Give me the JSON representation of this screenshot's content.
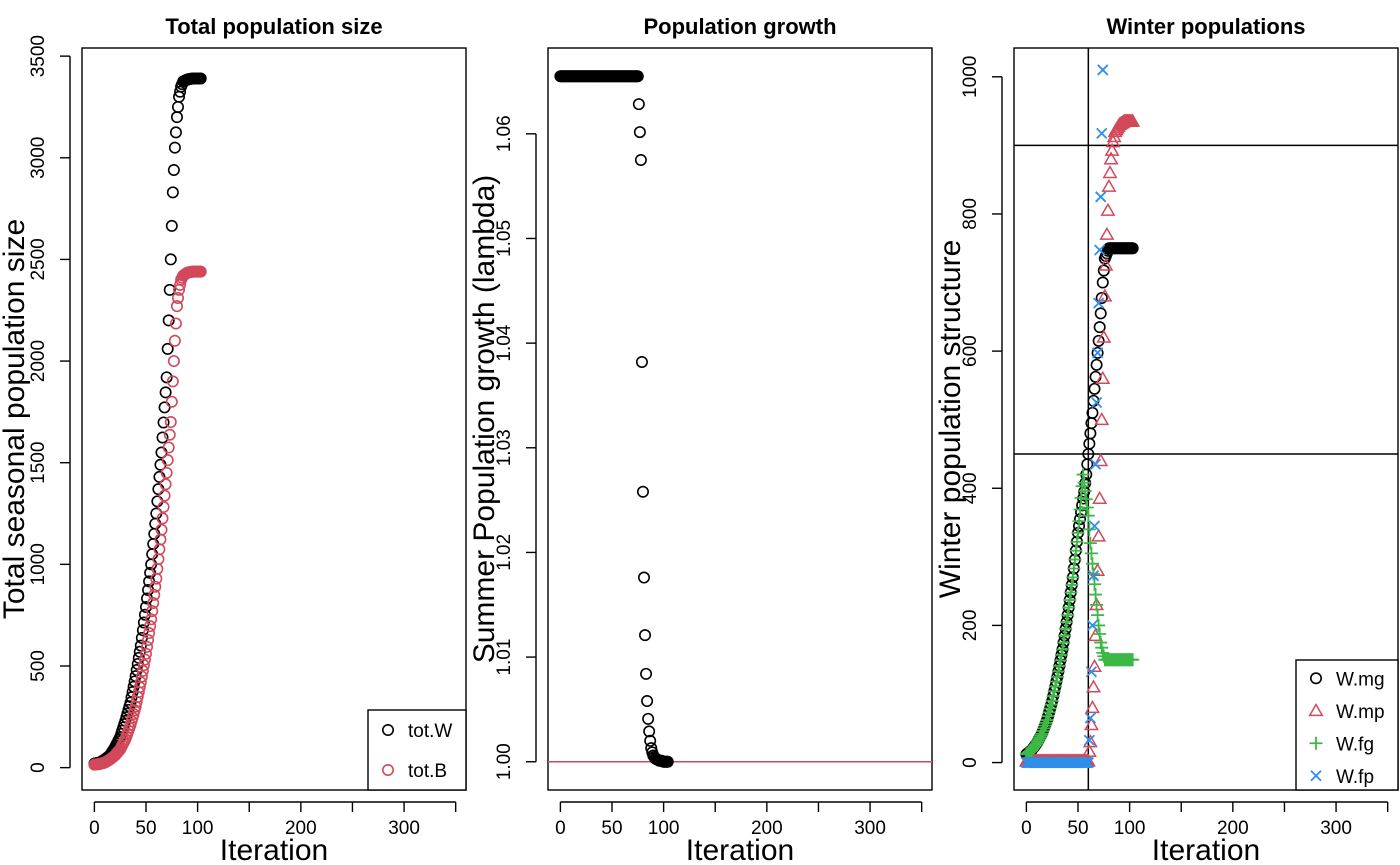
{
  "chart_data": [
    {
      "type": "scatter",
      "title": "Total population size",
      "xlabel": "Iteration",
      "ylabel": "Total seasonal population size",
      "xlim": [
        -12,
        360
      ],
      "ylim": [
        -110,
        3540
      ],
      "x_ticks": [
        0,
        50,
        100,
        150,
        200,
        250,
        300,
        350
      ],
      "x_tick_labels": [
        "0",
        "50",
        "100",
        "",
        "200",
        "",
        "300",
        ""
      ],
      "y_ticks": [
        0,
        500,
        1000,
        1500,
        2000,
        2500,
        3000,
        3500
      ],
      "y_tick_labels": [
        "0",
        "500",
        "1000",
        "1500",
        "2000",
        "2500",
        "3000",
        "3500"
      ],
      "legend": {
        "position": "bottom-right",
        "entries": [
          "tot.W",
          "tot.B"
        ]
      },
      "series": [
        {
          "name": "tot.W",
          "color": "#000000",
          "marker": "circle",
          "description": "exponential growth to plateau",
          "x": [
            0,
            5,
            10,
            15,
            20,
            25,
            30,
            35,
            40,
            45,
            50,
            55,
            60,
            65,
            70,
            72,
            74,
            76,
            78,
            80,
            82,
            84,
            86,
            90,
            95,
            100,
            103
          ],
          "y": [
            20,
            25,
            40,
            60,
            100,
            150,
            230,
            320,
            450,
            600,
            790,
            1000,
            1250,
            1550,
            1920,
            2200,
            2500,
            2830,
            3050,
            3200,
            3300,
            3350,
            3375,
            3385,
            3390,
            3390,
            3390
          ]
        },
        {
          "name": "tot.B",
          "color": "#d1495b",
          "marker": "circle",
          "description": "lagged growth to lower plateau",
          "x": [
            0,
            5,
            10,
            15,
            20,
            25,
            30,
            35,
            40,
            45,
            50,
            55,
            60,
            65,
            70,
            74,
            76,
            78,
            80,
            82,
            84,
            86,
            90,
            95,
            100,
            103
          ],
          "y": [
            15,
            18,
            25,
            40,
            60,
            90,
            140,
            210,
            300,
            420,
            560,
            730,
            930,
            1170,
            1450,
            1700,
            1900,
            2100,
            2270,
            2350,
            2400,
            2420,
            2435,
            2440,
            2440,
            2440
          ]
        }
      ]
    },
    {
      "type": "scatter",
      "title": "Population growth",
      "xlabel": "Iteration",
      "ylabel": "Summer Population growth (lambda)",
      "xlim": [
        -12,
        360
      ],
      "ylim": [
        0.9973,
        1.0682
      ],
      "x_ticks": [
        0,
        50,
        100,
        150,
        200,
        250,
        300,
        350
      ],
      "x_tick_labels": [
        "0",
        "50",
        "100",
        "",
        "200",
        "",
        "300",
        ""
      ],
      "y_ticks": [
        1.0,
        1.01,
        1.02,
        1.03,
        1.04,
        1.05,
        1.06
      ],
      "y_tick_labels": [
        "1.00",
        "1.01",
        "1.02",
        "1.03",
        "1.04",
        "1.05",
        "1.06"
      ],
      "hlines": [
        {
          "y": 1.0,
          "color": "#d1495b"
        }
      ],
      "series": [
        {
          "name": "lambda",
          "color": "#000000",
          "marker": "circle",
          "x": [
            0,
            5,
            10,
            15,
            20,
            25,
            30,
            35,
            40,
            45,
            50,
            55,
            60,
            65,
            70,
            75,
            78,
            79,
            80,
            81,
            82,
            83,
            84,
            85,
            86,
            87,
            88,
            89,
            90,
            92,
            94,
            96,
            98,
            100,
            102,
            104
          ],
          "y": [
            1.0655,
            1.0655,
            1.0655,
            1.0655,
            1.0655,
            1.0655,
            1.0655,
            1.0655,
            1.0655,
            1.0655,
            1.0655,
            1.0655,
            1.0655,
            1.0655,
            1.0655,
            1.0655,
            1.0575,
            1.0382,
            1.0258,
            1.0176,
            1.0121,
            1.0084,
            1.0058,
            1.0041,
            1.0029,
            1.002,
            1.0013,
            1.0009,
            1.0006,
            1.0003,
            1.0002,
            1.0001,
            1.0001,
            1.0,
            1.0,
            1.0
          ]
        }
      ]
    },
    {
      "type": "scatter",
      "title": "Winter populations",
      "xlabel": "Iteration",
      "ylabel": "Winter population structure",
      "xlim": [
        -12,
        360
      ],
      "ylim": [
        -40,
        1042
      ],
      "x_ticks": [
        0,
        50,
        100,
        150,
        200,
        250,
        300,
        350
      ],
      "x_tick_labels": [
        "0",
        "50",
        "100",
        "",
        "200",
        "",
        "300",
        ""
      ],
      "y_ticks": [
        0,
        200,
        400,
        600,
        800,
        1000
      ],
      "y_tick_labels": [
        "0",
        "200",
        "400",
        "600",
        "800",
        "1000"
      ],
      "hlines": [
        {
          "y": 900,
          "color": "#000000"
        },
        {
          "y": 450,
          "color": "#000000"
        }
      ],
      "vlines": [
        {
          "x": 60,
          "color": "#000000"
        }
      ],
      "legend": {
        "position": "bottom-right",
        "entries": [
          "W.mg",
          "W.mp",
          "W.fg",
          "W.fp"
        ]
      },
      "series": [
        {
          "name": "W.mg",
          "color": "#000000",
          "marker": "circle",
          "x": [
            0,
            5,
            10,
            15,
            20,
            25,
            30,
            35,
            40,
            45,
            50,
            52,
            54,
            56,
            58,
            60,
            62,
            64,
            66,
            68,
            70,
            72,
            74,
            76,
            80,
            85,
            90,
            95,
            100,
            103
          ],
          "y": [
            12,
            18,
            28,
            42,
            62,
            90,
            125,
            165,
            215,
            270,
            335,
            355,
            375,
            395,
            420,
            450,
            480,
            510,
            545,
            580,
            615,
            655,
            700,
            735,
            750,
            750,
            750,
            750,
            750,
            750
          ]
        },
        {
          "name": "W.mp",
          "color": "#d1495b",
          "marker": "triangle",
          "x": [
            0,
            10,
            20,
            30,
            40,
            50,
            55,
            60,
            62,
            64,
            66,
            68,
            70,
            72,
            74,
            76,
            78,
            80,
            82,
            84,
            86,
            90,
            95,
            100,
            103
          ],
          "y": [
            2,
            2,
            2,
            2,
            2,
            2,
            2,
            2,
            30,
            80,
            140,
            230,
            330,
            440,
            560,
            680,
            770,
            840,
            880,
            905,
            920,
            930,
            935,
            935,
            935
          ]
        },
        {
          "name": "W.fg",
          "color": "#3cb847",
          "marker": "plus",
          "x": [
            0,
            5,
            10,
            15,
            20,
            25,
            30,
            35,
            40,
            45,
            50,
            55,
            60,
            62,
            64,
            66,
            68,
            70,
            72,
            74,
            76,
            80,
            85,
            90,
            95,
            100,
            103
          ],
          "y": [
            12,
            18,
            28,
            42,
            62,
            90,
            125,
            165,
            215,
            270,
            335,
            420,
            360,
            320,
            290,
            260,
            230,
            200,
            175,
            160,
            150,
            150,
            150,
            150,
            150,
            150,
            150
          ]
        },
        {
          "name": "W.fp",
          "color": "#2f8ee8",
          "marker": "x",
          "x": [
            0,
            10,
            20,
            30,
            40,
            50,
            55,
            60,
            62,
            64,
            66,
            68,
            70,
            72,
            74
          ],
          "y": [
            0,
            0,
            0,
            0,
            0,
            0,
            0,
            0,
            65,
            200,
            345,
            525,
            670,
            825,
            1010
          ]
        }
      ]
    }
  ]
}
